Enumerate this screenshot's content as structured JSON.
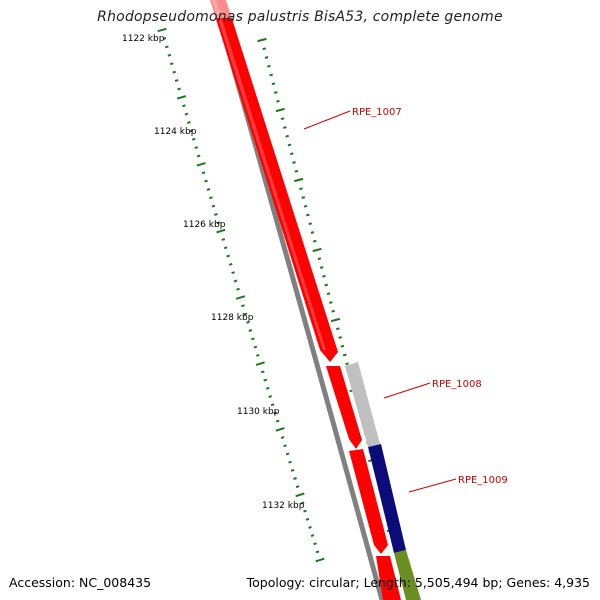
{
  "title": "Rhodopseudomonas palustris BisA53, complete genome",
  "accession": "Accession: NC_008435",
  "genome_info": "Topology: circular; Length: 5,505,494 bp; Genes: 4,935",
  "scale_ticks": [
    {
      "label": "1122 kbp",
      "kbp": 1122
    },
    {
      "label": "1124 kbp",
      "kbp": 1124
    },
    {
      "label": "1126 kbp",
      "kbp": 1126
    },
    {
      "label": "1128 kbp",
      "kbp": 1128
    },
    {
      "label": "1130 kbp",
      "kbp": 1130
    },
    {
      "label": "1132 kbp",
      "kbp": 1132
    }
  ],
  "genes": [
    {
      "label": "RPE_1007",
      "color": "#ff0000"
    },
    {
      "label": "RPE_1008",
      "color": "#c0c0c0"
    },
    {
      "label": "RPE_1009",
      "color": "#0b0b7a"
    }
  ],
  "colors": {
    "backbone": "#808080",
    "forward_gene": "#ff0000",
    "tick": "#1a7a1a",
    "gene_label": "#cc0000",
    "gene_olive": "#6b8e23"
  }
}
